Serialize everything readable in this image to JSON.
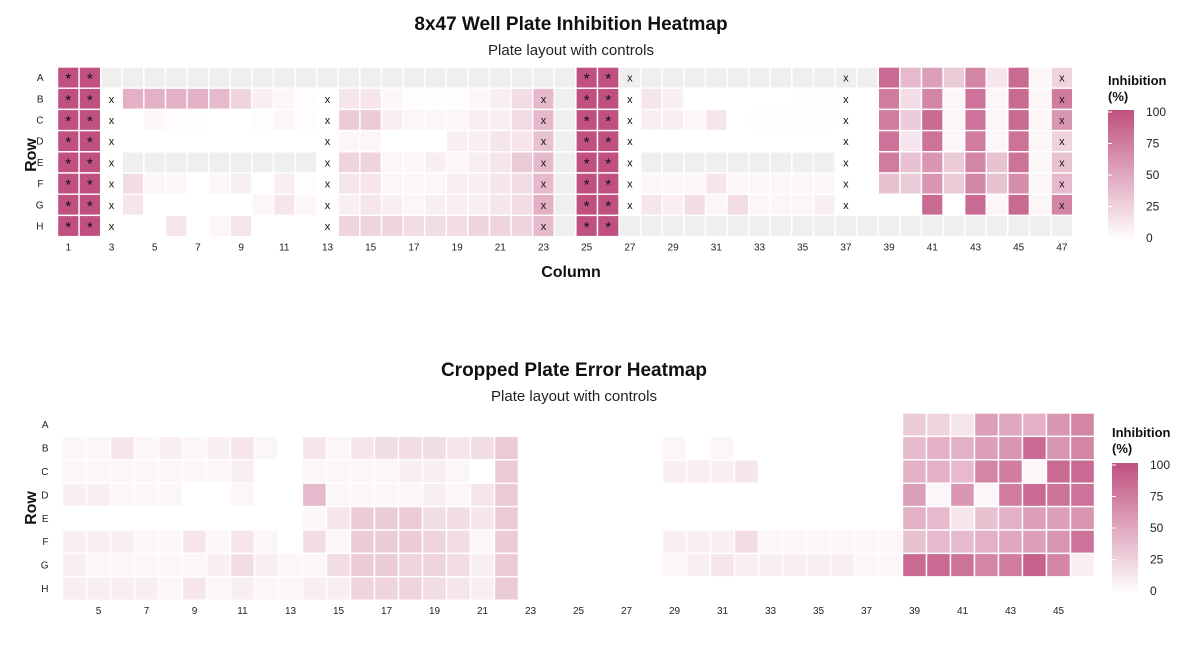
{
  "chart_data": [
    {
      "type": "heatmap",
      "title": "8x47 Well Plate Inhibition Heatmap",
      "subtitle": "Plate layout with controls",
      "xlabel": "Column",
      "ylabel": "Row",
      "rows": [
        "A",
        "B",
        "C",
        "D",
        "E",
        "F",
        "G",
        "H"
      ],
      "columns": [
        1,
        2,
        3,
        4,
        5,
        6,
        7,
        8,
        9,
        10,
        11,
        12,
        13,
        14,
        15,
        16,
        17,
        18,
        19,
        20,
        21,
        22,
        23,
        24,
        25,
        26,
        27,
        28,
        29,
        30,
        31,
        32,
        33,
        34,
        35,
        36,
        37,
        38,
        39,
        40,
        41,
        42,
        43,
        44,
        45,
        46,
        47
      ],
      "x_tick_labels": [
        "1",
        "3",
        "5",
        "7",
        "9",
        "11",
        "13",
        "15",
        "17",
        "19",
        "21",
        "23",
        "25",
        "27",
        "29",
        "31",
        "33",
        "35",
        "37",
        "39",
        "41",
        "43",
        "45",
        "47"
      ],
      "legend": {
        "title": "Inhibition\n(%)",
        "ticks": [
          "100",
          "75",
          "50",
          "25",
          "0"
        ],
        "range": [
          0,
          100
        ],
        "low_color": "#ffffff",
        "high_color": "#c0507f"
      },
      "cell_border_color": "#ffffff",
      "empty_color": "#efefef",
      "values": [
        [
          100,
          100,
          null,
          null,
          null,
          null,
          null,
          null,
          null,
          null,
          null,
          null,
          null,
          null,
          null,
          null,
          null,
          null,
          null,
          null,
          null,
          null,
          null,
          null,
          100,
          100,
          null,
          null,
          null,
          null,
          null,
          null,
          null,
          null,
          null,
          null,
          null,
          null,
          85,
          40,
          55,
          30,
          70,
          15,
          85,
          5,
          25
        ],
        [
          100,
          100,
          0,
          45,
          45,
          45,
          45,
          40,
          25,
          10,
          5,
          2,
          0,
          15,
          15,
          5,
          2,
          2,
          2,
          5,
          10,
          20,
          40,
          null,
          100,
          100,
          0,
          15,
          10,
          0,
          0,
          0,
          0,
          0,
          2,
          2,
          0,
          0,
          75,
          20,
          70,
          5,
          80,
          5,
          85,
          5,
          75
        ],
        [
          100,
          100,
          0,
          0,
          5,
          2,
          2,
          0,
          0,
          2,
          5,
          2,
          0,
          30,
          30,
          10,
          5,
          5,
          5,
          10,
          10,
          20,
          40,
          null,
          100,
          100,
          0,
          10,
          10,
          5,
          15,
          0,
          2,
          2,
          2,
          2,
          0,
          0,
          75,
          30,
          85,
          5,
          80,
          5,
          85,
          5,
          60
        ],
        [
          100,
          100,
          0,
          0,
          0,
          0,
          0,
          0,
          0,
          0,
          0,
          0,
          0,
          5,
          5,
          0,
          0,
          0,
          10,
          10,
          15,
          15,
          35,
          null,
          100,
          100,
          0,
          0,
          0,
          0,
          0,
          0,
          0,
          0,
          0,
          0,
          0,
          0,
          80,
          15,
          80,
          5,
          75,
          5,
          80,
          5,
          25
        ],
        [
          100,
          100,
          0,
          null,
          null,
          null,
          null,
          null,
          null,
          null,
          null,
          null,
          0,
          25,
          25,
          5,
          5,
          10,
          5,
          10,
          15,
          30,
          40,
          null,
          100,
          100,
          0,
          null,
          null,
          null,
          null,
          null,
          null,
          null,
          null,
          null,
          0,
          0,
          75,
          35,
          60,
          30,
          70,
          35,
          80,
          5,
          35
        ],
        [
          100,
          100,
          0,
          20,
          5,
          5,
          0,
          5,
          10,
          0,
          10,
          2,
          0,
          15,
          15,
          5,
          5,
          5,
          10,
          10,
          15,
          20,
          40,
          null,
          100,
          100,
          0,
          5,
          5,
          5,
          15,
          5,
          5,
          5,
          5,
          5,
          0,
          0,
          35,
          30,
          60,
          30,
          70,
          35,
          65,
          5,
          40
        ],
        [
          100,
          100,
          0,
          15,
          0,
          0,
          0,
          0,
          0,
          5,
          15,
          5,
          0,
          10,
          15,
          10,
          5,
          10,
          10,
          10,
          15,
          20,
          45,
          null,
          100,
          100,
          0,
          15,
          10,
          20,
          5,
          20,
          5,
          5,
          5,
          10,
          0,
          0,
          0,
          0,
          85,
          0,
          85,
          5,
          85,
          5,
          70
        ],
        [
          100,
          100,
          0,
          0,
          0,
          15,
          0,
          5,
          15,
          0,
          0,
          0,
          0,
          25,
          25,
          25,
          20,
          20,
          20,
          25,
          25,
          25,
          40,
          null,
          100,
          100,
          null,
          null,
          null,
          null,
          null,
          null,
          null,
          null,
          null,
          null,
          null,
          null,
          null,
          null,
          null,
          null,
          null,
          null,
          null,
          null,
          null
        ]
      ],
      "markers": {
        "star_columns": [
          1,
          2,
          25,
          26
        ],
        "x_columns": [
          {
            "column": 3,
            "rows": [
              "B",
              "C",
              "D",
              "E",
              "F",
              "G",
              "H"
            ]
          },
          {
            "column": 13,
            "rows": [
              "B",
              "C",
              "D",
              "E",
              "F",
              "G",
              "H"
            ]
          },
          {
            "column": 23,
            "rows": [
              "B",
              "C",
              "D",
              "E",
              "F",
              "G",
              "H"
            ]
          },
          {
            "column": 27,
            "rows": [
              "A",
              "B",
              "C",
              "D",
              "E",
              "F",
              "G"
            ]
          },
          {
            "column": 37,
            "rows": [
              "A",
              "B",
              "C",
              "D",
              "E",
              "F",
              "G"
            ]
          },
          {
            "column": 47,
            "rows": [
              "A",
              "B",
              "C",
              "D",
              "E",
              "F",
              "G"
            ]
          }
        ]
      }
    },
    {
      "type": "heatmap",
      "title": "Cropped Plate Error Heatmap",
      "subtitle": "Plate layout with controls",
      "xlabel": "",
      "ylabel": "Row",
      "rows": [
        "A",
        "B",
        "C",
        "D",
        "E",
        "F",
        "G",
        "H"
      ],
      "columns": [
        4,
        5,
        6,
        7,
        8,
        9,
        10,
        11,
        12,
        13,
        14,
        15,
        16,
        17,
        18,
        19,
        20,
        21,
        22,
        23,
        24,
        25,
        26,
        27,
        28,
        29,
        30,
        31,
        32,
        33,
        34,
        35,
        36,
        37,
        38,
        39,
        40,
        41,
        42,
        43,
        44,
        45,
        46
      ],
      "x_tick_labels": [
        "5",
        "7",
        "9",
        "11",
        "13",
        "15",
        "17",
        "19",
        "21",
        "23",
        "25",
        "27",
        "29",
        "31",
        "33",
        "35",
        "37",
        "39",
        "41",
        "43",
        "45"
      ],
      "legend": {
        "title": "Inhibition\n(%)",
        "ticks": [
          "100",
          "75",
          "50",
          "25",
          "0"
        ],
        "range": [
          0,
          100
        ],
        "low_color": "#ffffff",
        "high_color": "#c0507f"
      },
      "cell_border_color": "#ffffff",
      "values": [
        [
          null,
          null,
          null,
          null,
          null,
          null,
          null,
          null,
          null,
          null,
          null,
          null,
          null,
          null,
          null,
          null,
          null,
          null,
          null,
          null,
          null,
          null,
          null,
          null,
          null,
          null,
          null,
          null,
          null,
          null,
          null,
          null,
          null,
          null,
          null,
          30,
          25,
          15,
          55,
          50,
          45,
          60,
          70
        ],
        [
          5,
          5,
          15,
          5,
          10,
          5,
          10,
          15,
          5,
          0,
          15,
          5,
          15,
          20,
          20,
          20,
          15,
          20,
          30,
          null,
          null,
          null,
          null,
          null,
          null,
          5,
          0,
          5,
          0,
          0,
          0,
          0,
          0,
          0,
          0,
          40,
          45,
          45,
          55,
          60,
          85,
          60,
          70
        ],
        [
          5,
          5,
          5,
          5,
          5,
          5,
          5,
          10,
          0,
          0,
          5,
          5,
          5,
          5,
          10,
          10,
          5,
          0,
          30,
          null,
          null,
          null,
          null,
          null,
          null,
          10,
          10,
          10,
          15,
          0,
          0,
          0,
          0,
          0,
          0,
          45,
          45,
          40,
          70,
          75,
          5,
          85,
          85
        ],
        [
          10,
          10,
          5,
          5,
          5,
          0,
          0,
          5,
          0,
          0,
          40,
          5,
          5,
          5,
          5,
          10,
          5,
          15,
          30,
          null,
          null,
          null,
          null,
          null,
          null,
          0,
          0,
          0,
          0,
          0,
          0,
          0,
          0,
          0,
          0,
          55,
          5,
          60,
          5,
          75,
          85,
          80,
          80
        ],
        [
          null,
          null,
          null,
          null,
          null,
          null,
          null,
          null,
          null,
          null,
          5,
          15,
          30,
          30,
          30,
          20,
          20,
          15,
          30,
          null,
          null,
          null,
          null,
          null,
          null,
          null,
          null,
          null,
          null,
          null,
          null,
          null,
          null,
          null,
          null,
          45,
          40,
          15,
          35,
          45,
          55,
          55,
          60
        ],
        [
          10,
          10,
          10,
          5,
          5,
          15,
          5,
          15,
          5,
          0,
          20,
          5,
          30,
          30,
          30,
          25,
          20,
          5,
          30,
          null,
          null,
          null,
          null,
          null,
          null,
          10,
          10,
          10,
          20,
          5,
          5,
          5,
          5,
          5,
          5,
          35,
          40,
          40,
          45,
          50,
          55,
          60,
          80
        ],
        [
          10,
          5,
          5,
          5,
          5,
          5,
          10,
          20,
          10,
          5,
          5,
          20,
          30,
          30,
          25,
          25,
          20,
          10,
          30,
          null,
          null,
          null,
          null,
          null,
          null,
          5,
          10,
          15,
          10,
          10,
          10,
          10,
          10,
          5,
          5,
          85,
          85,
          80,
          70,
          75,
          90,
          70,
          10
        ],
        [
          10,
          10,
          10,
          10,
          5,
          15,
          5,
          10,
          5,
          5,
          10,
          10,
          25,
          25,
          25,
          20,
          15,
          10,
          30,
          null,
          null,
          null,
          null,
          null,
          null,
          null,
          null,
          null,
          null,
          null,
          null,
          null,
          null,
          null,
          null,
          null,
          null,
          null,
          null,
          null,
          null,
          null,
          null
        ]
      ]
    }
  ]
}
